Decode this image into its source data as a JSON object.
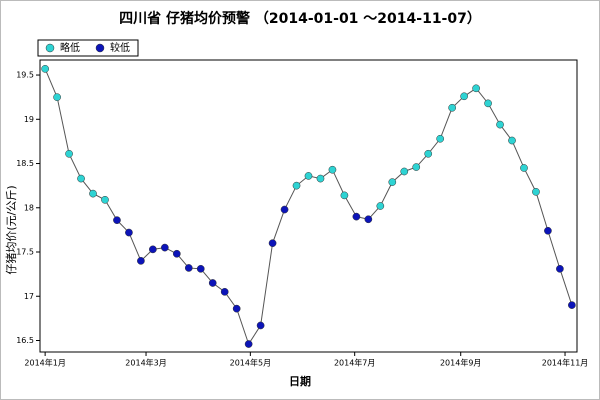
{
  "chart_data": {
    "type": "line",
    "title": "四川省 仔猪均价预警 （2014-01-01 ～2014-11-07）",
    "x_label": "日期",
    "y_label": "仔猪均价(元/公斤)",
    "legend": [
      {
        "name": "略低",
        "color": "#2ed3d3"
      },
      {
        "name": "较低",
        "color": "#0c14b8"
      }
    ],
    "x": [
      0,
      7,
      14,
      21,
      28,
      35,
      42,
      49,
      56,
      63,
      70,
      77,
      84,
      91,
      98,
      105,
      112,
      119,
      126,
      133,
      140,
      147,
      154,
      161,
      168,
      175,
      182,
      189,
      196,
      203,
      210,
      217,
      224,
      231,
      238,
      245,
      252,
      259,
      266,
      273,
      280,
      287,
      294,
      301,
      308
    ],
    "values": [
      19.57,
      19.25,
      18.61,
      18.33,
      18.16,
      18.09,
      17.86,
      17.72,
      17.4,
      17.53,
      17.55,
      17.48,
      17.32,
      17.31,
      17.15,
      17.05,
      16.86,
      16.46,
      16.67,
      17.6,
      17.98,
      18.25,
      18.36,
      18.33,
      18.43,
      18.14,
      17.9,
      17.87,
      18.02,
      18.29,
      18.41,
      18.46,
      18.61,
      18.78,
      19.13,
      19.26,
      19.35,
      19.18,
      18.94,
      18.76,
      18.45,
      18.18,
      17.74,
      17.31,
      16.9
    ],
    "levels": [
      0,
      0,
      0,
      0,
      0,
      0,
      1,
      1,
      1,
      1,
      1,
      1,
      1,
      1,
      1,
      1,
      1,
      1,
      1,
      1,
      1,
      0,
      0,
      0,
      0,
      0,
      1,
      1,
      0,
      0,
      0,
      0,
      0,
      0,
      0,
      0,
      0,
      0,
      0,
      0,
      0,
      0,
      1,
      1,
      1
    ],
    "line_color": "#555555",
    "xlim": [
      -3,
      311
    ],
    "xticks": [
      {
        "value": 0,
        "label": "2014年1月"
      },
      {
        "value": 59,
        "label": "2014年3月"
      },
      {
        "value": 120,
        "label": "2014年5月"
      },
      {
        "value": 181,
        "label": "2014年7月"
      },
      {
        "value": 243,
        "label": "2014年9月"
      },
      {
        "value": 304,
        "label": "2014年11月"
      }
    ],
    "ylim": [
      16.37,
      19.67
    ],
    "yticks": [
      16.5,
      17.0,
      17.5,
      18.0,
      18.5,
      19.0,
      19.5
    ],
    "grid": false
  }
}
